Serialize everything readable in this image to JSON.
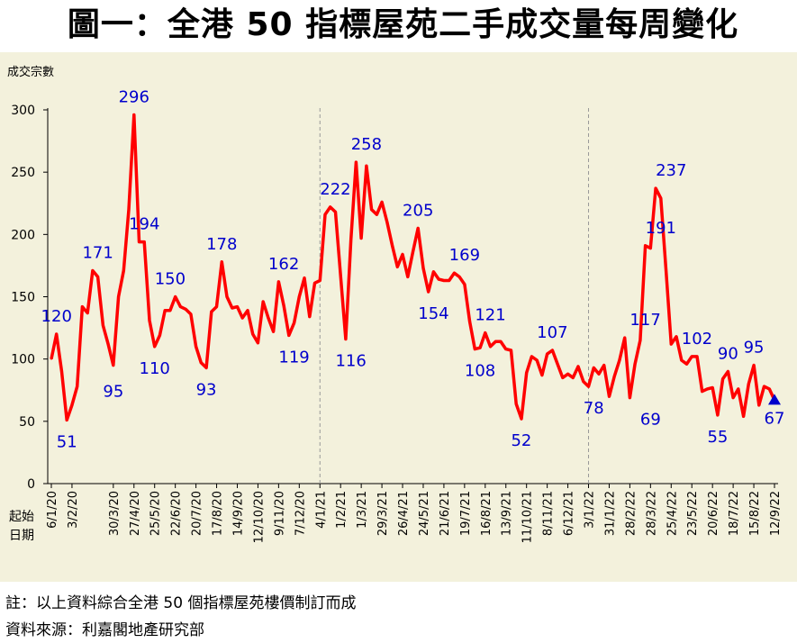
{
  "title": "圖一：全港 50 指標屋苑二手成交量每周變化",
  "footnote": "註：以上資料綜合全港 50 個指標屋苑樓價制訂而成",
  "source": "資料來源：利嘉閣地產研究部",
  "colors": {
    "background": "#f3f1dc",
    "line": "#ff0000",
    "labels": "#0000cc",
    "marker": "#0000cc",
    "divider": "#999999"
  },
  "chart_data": {
    "type": "line",
    "title": "圖一：全港 50 指標屋苑二手成交量每周變化",
    "ylabel": "成交宗數",
    "xlabel": "起始日期",
    "ylim": [
      0,
      300
    ],
    "yticks": [
      0,
      50,
      100,
      150,
      200,
      250,
      300
    ],
    "grid": false,
    "x_start": "6/1/20",
    "x_end": "12/9/22",
    "year_dividers": [
      "4/1/21",
      "3/1/22"
    ],
    "tick_labels": [
      "6/1/20",
      "3/2/20",
      "30/3/20",
      "27/4/20",
      "25/5/20",
      "22/6/20",
      "20/7/20",
      "17/8/20",
      "14/9/20",
      "12/10/20",
      "9/11/20",
      "7/12/20",
      "4/1/21",
      "1/2/21",
      "1/3/21",
      "29/3/21",
      "26/4/21",
      "24/5/21",
      "21/6/21",
      "19/7/21",
      "16/8/21",
      "13/9/21",
      "11/10/21",
      "8/11/21",
      "6/12/21",
      "3/1/22",
      "31/1/22",
      "28/2/22",
      "28/3/22",
      "25/4/22",
      "23/5/22",
      "20/6/22",
      "18/7/22",
      "15/8/22",
      "12/9/22"
    ],
    "series": [
      {
        "values": [
          100,
          120,
          90,
          51,
          63,
          78,
          142,
          137,
          171,
          166,
          127,
          112,
          95,
          150,
          171,
          220,
          296,
          194,
          194,
          131,
          110,
          119,
          139,
          139,
          150,
          142,
          140,
          136,
          110,
          97,
          93,
          138,
          142,
          178,
          150,
          141,
          142,
          133,
          139,
          120,
          113,
          146,
          133,
          122,
          162,
          143,
          119,
          129,
          150,
          165,
          134,
          161,
          163,
          216,
          222,
          218,
          167,
          116,
          196,
          258,
          197,
          255,
          220,
          216,
          226,
          210,
          191,
          174,
          184,
          166,
          186,
          205,
          173,
          154,
          170,
          164,
          163,
          163,
          169,
          166,
          160,
          130,
          108,
          109,
          121,
          110,
          114,
          114,
          108,
          107,
          64,
          52,
          89,
          102,
          99,
          87,
          104,
          107,
          96,
          85,
          88,
          85,
          94,
          82,
          78,
          93,
          88,
          95,
          70,
          86,
          99,
          117,
          69,
          96,
          115,
          191,
          189,
          237,
          229,
          172,
          112,
          118,
          99,
          96,
          102,
          102,
          74,
          76,
          77,
          55,
          84,
          90,
          69,
          76,
          54,
          80,
          95,
          63,
          78,
          76,
          67
        ]
      }
    ],
    "annotations": [
      {
        "text": "120",
        "x": "13/1/20",
        "y": 120
      },
      {
        "text": "51",
        "x": "27/1/20",
        "y": 51
      },
      {
        "text": "171",
        "x": "9/3/20",
        "y": 171
      },
      {
        "text": "95",
        "x": "30/3/20",
        "y": 95
      },
      {
        "text": "296",
        "x": "27/4/20",
        "y": 296
      },
      {
        "text": "194",
        "x": "11/5/20",
        "y": 194
      },
      {
        "text": "110",
        "x": "25/5/20",
        "y": 110
      },
      {
        "text": "150",
        "x": "15/6/20",
        "y": 150
      },
      {
        "text": "93",
        "x": "3/8/20",
        "y": 93
      },
      {
        "text": "178",
        "x": "24/8/20",
        "y": 178
      },
      {
        "text": "162",
        "x": "16/11/20",
        "y": 162
      },
      {
        "text": "119",
        "x": "30/11/20",
        "y": 119
      },
      {
        "text": "222",
        "x": "25/1/21",
        "y": 222
      },
      {
        "text": "116",
        "x": "15/2/21",
        "y": 116
      },
      {
        "text": "258",
        "x": "8/3/21",
        "y": 258
      },
      {
        "text": "205",
        "x": "17/5/21",
        "y": 205
      },
      {
        "text": "154",
        "x": "7/6/21",
        "y": 154
      },
      {
        "text": "169",
        "x": "19/7/21",
        "y": 169
      },
      {
        "text": "121",
        "x": "23/8/21",
        "y": 121
      },
      {
        "text": "108",
        "x": "9/8/21",
        "y": 108
      },
      {
        "text": "52",
        "x": "4/10/21",
        "y": 52
      },
      {
        "text": "107",
        "x": "15/11/21",
        "y": 107
      },
      {
        "text": "78",
        "x": "10/1/22",
        "y": 78
      },
      {
        "text": "117",
        "x": "21/3/22",
        "y": 117
      },
      {
        "text": "69",
        "x": "28/3/22",
        "y": 69
      },
      {
        "text": "191",
        "x": "11/4/22",
        "y": 191
      },
      {
        "text": "237",
        "x": "25/4/22",
        "y": 237
      },
      {
        "text": "102",
        "x": "30/5/22",
        "y": 102
      },
      {
        "text": "55",
        "x": "27/6/22",
        "y": 55
      },
      {
        "text": "90",
        "x": "11/7/22",
        "y": 90
      },
      {
        "text": "95",
        "x": "15/8/22",
        "y": 95
      },
      {
        "text": "67",
        "x": "12/9/22",
        "y": 67
      }
    ],
    "last_point_marker": "triangle"
  }
}
